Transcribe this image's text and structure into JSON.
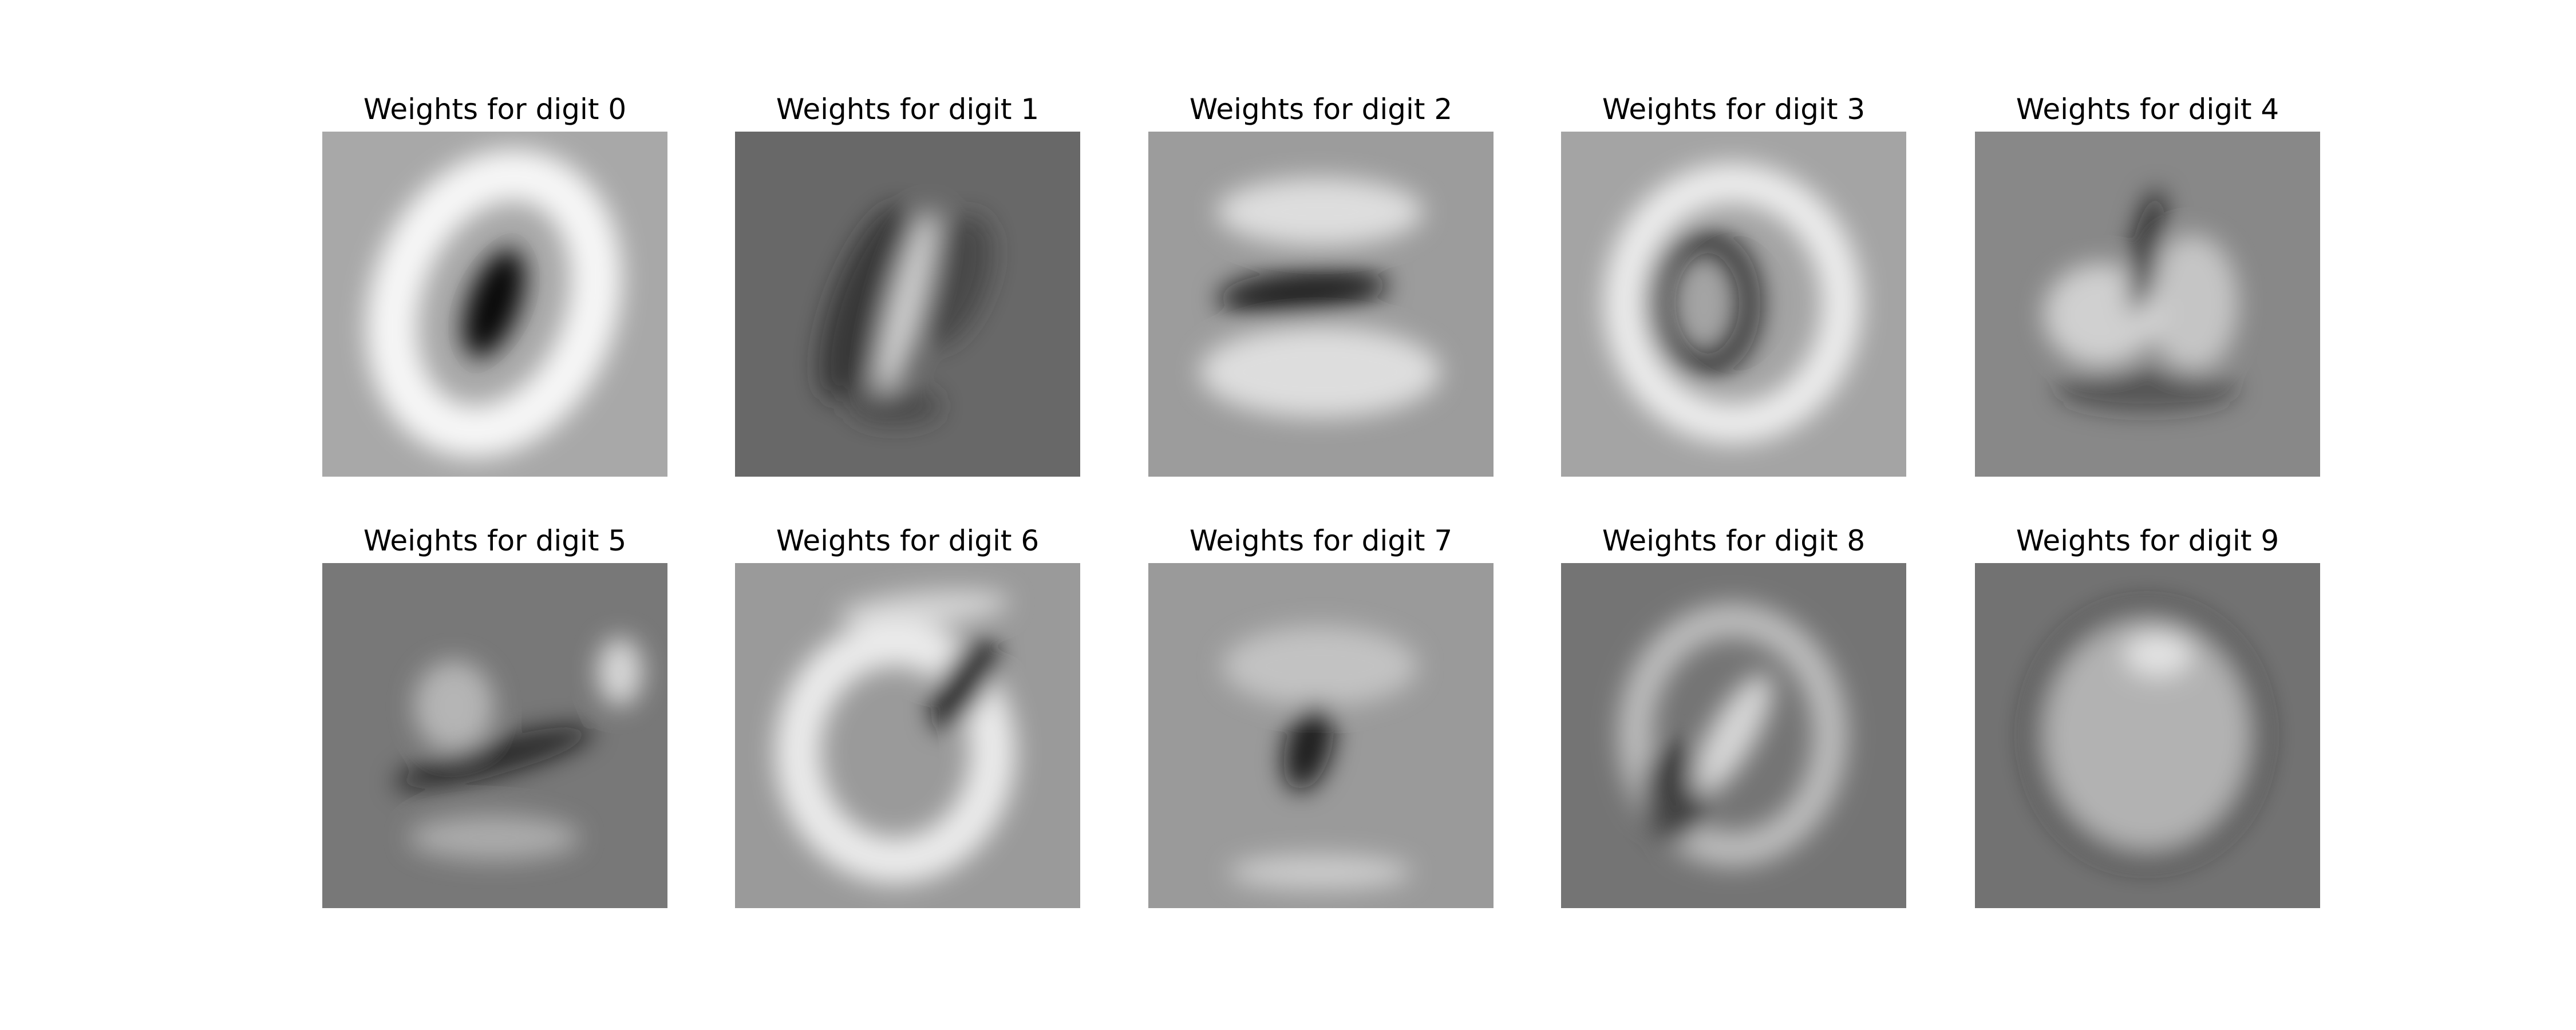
{
  "chart_data": [
    {
      "type": "image",
      "title": "Weights for digit 0",
      "color": "#a8a8a8"
    },
    {
      "type": "image",
      "title": "Weights for digit 1",
      "color": "#686868"
    },
    {
      "type": "image",
      "title": "Weights for digit 2",
      "color": "#9c9c9c"
    },
    {
      "type": "image",
      "title": "Weights for digit 3",
      "color": "#a4a4a4"
    },
    {
      "type": "image",
      "title": "Weights for digit 4",
      "color": "#888888"
    },
    {
      "type": "image",
      "title": "Weights for digit 5",
      "color": "#787878"
    },
    {
      "type": "image",
      "title": "Weights for digit 6",
      "color": "#9a9a9a"
    },
    {
      "type": "image",
      "title": "Weights for digit 7",
      "color": "#9a9a9a"
    },
    {
      "type": "image",
      "title": "Weights for digit 8",
      "color": "#747474"
    },
    {
      "type": "image",
      "title": "Weights for digit 9",
      "color": "#727272"
    }
  ]
}
